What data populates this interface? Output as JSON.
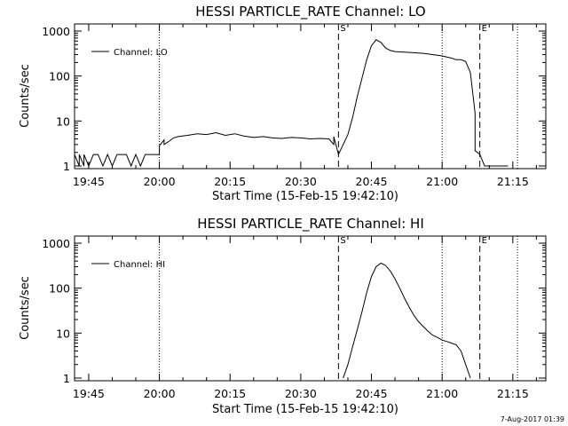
{
  "page": {
    "timestamp": "7-Aug-2017 01:39"
  },
  "chart_data": [
    {
      "type": "line",
      "title": "HESSI PARTICLE_RATE Channel: LO",
      "xlabel": "Start Time (15-Feb-15 19:42:10)",
      "ylabel": "Counts/sec",
      "yscale": "log",
      "ylim": [
        1,
        1000
      ],
      "xlim": [
        "19:42",
        "21:22"
      ],
      "x_ticks": [
        "19:45",
        "20:00",
        "20:15",
        "20:30",
        "20:45",
        "21:00",
        "21:15"
      ],
      "y_ticks": [
        "1",
        "10",
        "100",
        "1000"
      ],
      "legend": {
        "entries": [
          "Channel: LO"
        ],
        "position": "top-left"
      },
      "markers": {
        "dotted": [
          "20:00",
          "21:00",
          "21:16"
        ],
        "dashed": [
          {
            "x": "20:38",
            "label": "S"
          },
          {
            "x": "21:08",
            "label": "E"
          }
        ]
      },
      "series": [
        {
          "name": "Channel: LO",
          "x": [
            "19:42",
            "19:43",
            "19:43",
            "19:44",
            "19:44",
            "19:45",
            "19:46",
            "19:47",
            "19:48",
            "19:49",
            "19:50",
            "19:51",
            "19:52",
            "19:53",
            "19:54",
            "19:55",
            "19:56",
            "19:57",
            "19:58",
            "19:59",
            "20:00",
            "20:00",
            "20:01",
            "20:01",
            "20:02",
            "20:03",
            "20:04",
            "20:06",
            "20:08",
            "20:10",
            "20:12",
            "20:14",
            "20:16",
            "20:18",
            "20:20",
            "20:22",
            "20:24",
            "20:26",
            "20:28",
            "20:30",
            "20:32",
            "20:34",
            "20:36",
            "20:37",
            "20:37",
            "20:38",
            "20:39",
            "20:40",
            "20:41",
            "20:42",
            "20:43",
            "20:44",
            "20:45",
            "20:46",
            "20:47",
            "20:48",
            "20:49",
            "20:50",
            "20:52",
            "20:54",
            "20:56",
            "20:58",
            "21:00",
            "21:02",
            "21:03",
            "21:04",
            "21:05",
            "21:06",
            "21:07",
            "21:07",
            "21:08",
            "21:09",
            "21:10",
            "21:11",
            "21:12",
            "21:13",
            "21:14"
          ],
          "y": [
            1.8,
            1,
            1.8,
            1,
            1.8,
            1,
            1.8,
            1.8,
            1,
            1.8,
            1,
            1.8,
            1.8,
            1.8,
            1,
            1.8,
            1,
            1.8,
            1.8,
            1.8,
            1.8,
            2.8,
            3.8,
            3,
            3.5,
            4.2,
            4.5,
            4.8,
            5.2,
            5,
            5.5,
            4.8,
            5.2,
            4.6,
            4.3,
            4.5,
            4.2,
            4.1,
            4.3,
            4.2,
            4,
            4.1,
            4,
            3,
            4.5,
            1.8,
            3,
            5,
            12,
            35,
            90,
            230,
            470,
            640,
            560,
            420,
            370,
            350,
            340,
            330,
            320,
            300,
            280,
            250,
            230,
            230,
            210,
            120,
            15,
            2.2,
            1.8,
            1,
            1,
            1,
            1,
            1,
            1
          ]
        }
      ]
    },
    {
      "type": "line",
      "title": "HESSI PARTICLE_RATE Channel: HI",
      "xlabel": "Start Time (15-Feb-15 19:42:10)",
      "ylabel": "Counts/sec",
      "yscale": "log",
      "ylim": [
        1,
        1000
      ],
      "xlim": [
        "19:42",
        "21:22"
      ],
      "x_ticks": [
        "19:45",
        "20:00",
        "20:15",
        "20:30",
        "20:45",
        "21:00",
        "21:15"
      ],
      "y_ticks": [
        "1",
        "10",
        "100",
        "1000"
      ],
      "legend": {
        "entries": [
          "Channel: HI"
        ],
        "position": "top-left"
      },
      "markers": {
        "dotted": [
          "20:00",
          "21:00",
          "21:16"
        ],
        "dashed": [
          {
            "x": "20:38",
            "label": "S"
          },
          {
            "x": "21:08",
            "label": "E"
          }
        ]
      },
      "series": [
        {
          "name": "Channel: HI",
          "x": [
            "20:39",
            "20:40",
            "20:41",
            "20:42",
            "20:43",
            "20:44",
            "20:45",
            "20:46",
            "20:47",
            "20:48",
            "20:49",
            "20:50",
            "20:51",
            "20:52",
            "20:53",
            "20:54",
            "20:55",
            "20:56",
            "20:57",
            "20:58",
            "20:59",
            "21:00",
            "21:01",
            "21:02",
            "21:03",
            "21:04",
            "21:05",
            "21:06"
          ],
          "y": [
            1,
            2,
            5,
            12,
            30,
            80,
            180,
            300,
            360,
            320,
            240,
            160,
            100,
            60,
            38,
            25,
            18,
            14,
            11,
            9,
            8,
            7,
            6.5,
            6,
            5.5,
            4,
            2,
            1
          ]
        }
      ]
    }
  ]
}
